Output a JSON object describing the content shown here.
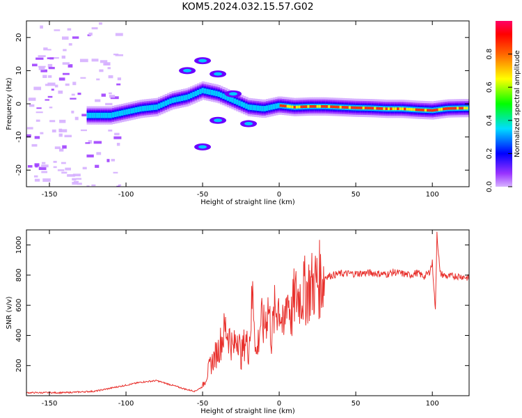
{
  "title": "KOM5.2024.032.15.57.G02",
  "chart_data": [
    {
      "type": "heatmap",
      "xlabel": "Height of straight line (km)",
      "ylabel": "Frequency (Hz)",
      "xlim": [
        -165,
        124
      ],
      "ylim": [
        -25,
        25
      ],
      "xticks": [
        -150,
        -100,
        -50,
        0,
        50,
        100
      ],
      "yticks": [
        -20,
        -10,
        0,
        10,
        20
      ],
      "colorbar": {
        "label": "Normalized spectral amplitude",
        "range": [
          0,
          1
        ],
        "ticks": [
          "0.0",
          "0.2",
          "0.4",
          "0.6",
          "0.8"
        ]
      },
      "ridge": {
        "description_points": [
          {
            "x": -120,
            "y": -3.5
          },
          {
            "x": -110,
            "y": -3.5
          },
          {
            "x": -100,
            "y": -2.5
          },
          {
            "x": -90,
            "y": -1.5
          },
          {
            "x": -80,
            "y": -1.0
          },
          {
            "x": -70,
            "y": 1.0
          },
          {
            "x": -60,
            "y": 2.0
          },
          {
            "x": -50,
            "y": 4.0
          },
          {
            "x": -40,
            "y": 3.0
          },
          {
            "x": -30,
            "y": 1.0
          },
          {
            "x": -20,
            "y": -1.0
          },
          {
            "x": -10,
            "y": -1.5
          },
          {
            "x": 0,
            "y": -0.5
          },
          {
            "x": 10,
            "y": -1.0
          },
          {
            "x": 20,
            "y": -0.8
          },
          {
            "x": 30,
            "y": -0.8
          },
          {
            "x": 40,
            "y": -1.0
          },
          {
            "x": 50,
            "y": -1.2
          },
          {
            "x": 60,
            "y": -1.3
          },
          {
            "x": 70,
            "y": -1.5
          },
          {
            "x": 80,
            "y": -1.5
          },
          {
            "x": 90,
            "y": -1.8
          },
          {
            "x": 100,
            "y": -2.0
          },
          {
            "x": 110,
            "y": -1.4
          },
          {
            "x": 120,
            "y": -1.3
          }
        ],
        "secondary_points": [
          {
            "x": -60,
            "y": 10.0
          },
          {
            "x": -50,
            "y": 13.0
          },
          {
            "x": -40,
            "y": 9.0
          },
          {
            "x": -50,
            "y": -13.0
          },
          {
            "x": -40,
            "y": -5.0
          },
          {
            "x": -30,
            "y": 3.0
          },
          {
            "x": -20,
            "y": -6.0
          }
        ]
      }
    },
    {
      "type": "line",
      "xlabel": "Height of straight line (km)",
      "ylabel": "SNR (v/v)",
      "xlim": [
        -165,
        124
      ],
      "ylim": [
        0,
        1100
      ],
      "xticks": [
        -150,
        -100,
        -50,
        0,
        50,
        100
      ],
      "yticks": [
        200,
        400,
        600,
        800,
        1000
      ],
      "color": "#e8302c",
      "series": [
        {
          "x": [
            -165,
            -150,
            -140,
            -130,
            -120,
            -110,
            -100,
            -90,
            -80,
            -70,
            -60,
            -55,
            -50,
            -45,
            -40,
            -35,
            -32,
            -30,
            -27,
            -25,
            -22,
            -20,
            -17,
            -15,
            -12,
            -10,
            -7,
            -5,
            -3,
            0,
            3,
            5,
            8,
            10,
            15,
            20,
            25,
            30,
            35,
            40,
            50,
            60,
            70,
            75,
            80,
            85,
            90,
            95,
            98,
            100,
            102,
            103,
            105,
            110,
            115,
            120,
            124
          ],
          "y": [
            20,
            20,
            20,
            25,
            30,
            50,
            70,
            90,
            100,
            70,
            40,
            30,
            60,
            200,
            300,
            450,
            380,
            300,
            430,
            250,
            380,
            300,
            700,
            250,
            500,
            450,
            600,
            380,
            550,
            620,
            400,
            700,
            520,
            650,
            680,
            720,
            760,
            790,
            800,
            810,
            810,
            815,
            805,
            820,
            810,
            800,
            815,
            790,
            820,
            880,
            560,
            1090,
            810,
            790,
            795,
            790,
            780
          ]
        }
      ]
    }
  ]
}
